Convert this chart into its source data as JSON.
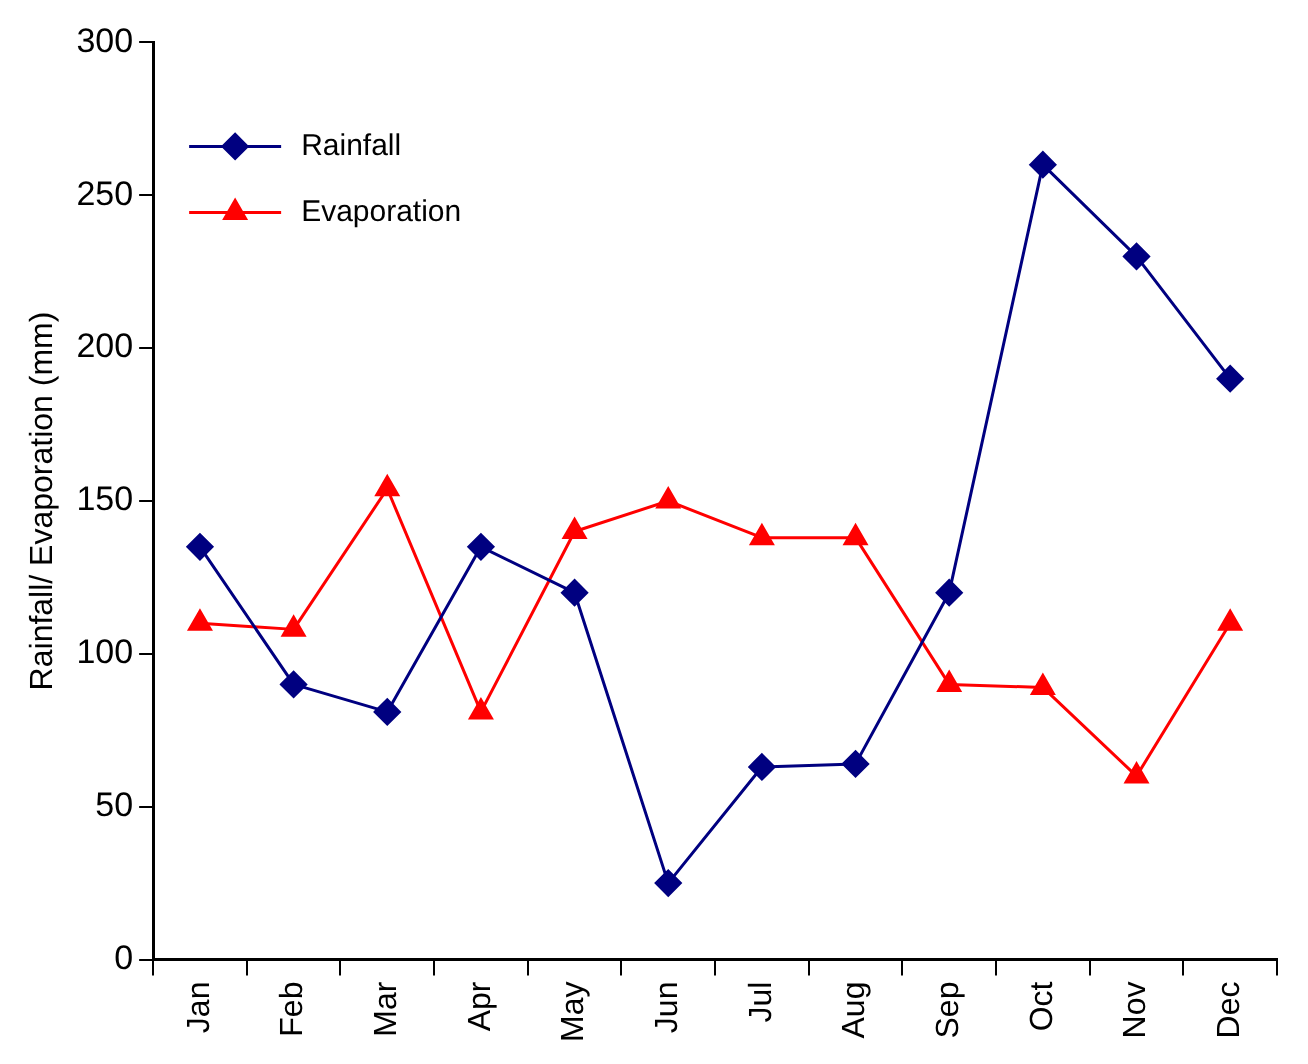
{
  "chart_data": {
    "type": "line",
    "ylabel": "Rainfall/ Evaporation (mm)",
    "categories": [
      "Jan",
      "Feb",
      "Mar",
      "Apr",
      "May",
      "Jun",
      "Jul",
      "Aug",
      "Sep",
      "Oct",
      "Nov",
      "Dec"
    ],
    "series": [
      {
        "name": "Rainfall",
        "color": "#000080",
        "marker": "diamond",
        "values": [
          135,
          90,
          81,
          135,
          120,
          25,
          63,
          64,
          120,
          260,
          230,
          190
        ]
      },
      {
        "name": "Evaporation",
        "color": "#ff0000",
        "marker": "triangle",
        "values": [
          110,
          108,
          154,
          81,
          140,
          150,
          138,
          138,
          90,
          89,
          60,
          110
        ]
      }
    ],
    "ylim": [
      0,
      300
    ],
    "yticks": [
      0,
      50,
      100,
      150,
      200,
      250,
      300
    ],
    "grid": false,
    "legend": "top left",
    "line_style": "solid"
  }
}
